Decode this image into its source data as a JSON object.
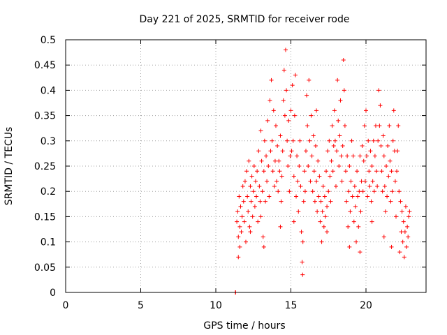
{
  "chart_data": {
    "type": "scatter",
    "title": "Day 221 of 2025, SRMTID for receiver rode",
    "xlabel": "GPS time / hours",
    "ylabel": "SRMTID / TECUs",
    "xlim": [
      0,
      24
    ],
    "ylim": [
      0,
      0.5
    ],
    "xticks": [
      0,
      5,
      10,
      15,
      20
    ],
    "yticks": [
      0,
      0.05,
      0.1,
      0.15,
      0.2,
      0.25,
      0.3,
      0.35,
      0.4,
      0.45,
      0.5
    ],
    "xtick_labels": [
      "0",
      "5",
      "10",
      "15",
      "20"
    ],
    "ytick_labels": [
      "0",
      "0.05",
      "0.1",
      "0.15",
      "0.2",
      "0.25",
      "0.3",
      "0.35",
      "0.4",
      "0.45",
      "0.5"
    ],
    "grid": true,
    "marker": "+",
    "color": "#ff0000",
    "series": [
      {
        "name": "SRMTID",
        "points": [
          [
            11.3,
            0.0
          ],
          [
            11.32,
            0.0
          ],
          [
            11.4,
            0.14
          ],
          [
            11.45,
            0.16
          ],
          [
            11.5,
            0.07
          ],
          [
            11.5,
            0.11
          ],
          [
            11.55,
            0.19
          ],
          [
            11.6,
            0.13
          ],
          [
            11.65,
            0.17
          ],
          [
            11.7,
            0.12
          ],
          [
            11.75,
            0.15
          ],
          [
            11.8,
            0.21
          ],
          [
            11.85,
            0.18
          ],
          [
            11.9,
            0.14
          ],
          [
            11.95,
            0.22
          ],
          [
            12.0,
            0.1
          ],
          [
            12.05,
            0.24
          ],
          [
            12.1,
            0.19
          ],
          [
            12.15,
            0.16
          ],
          [
            12.2,
            0.26
          ],
          [
            12.25,
            0.13
          ],
          [
            12.3,
            0.21
          ],
          [
            12.35,
            0.18
          ],
          [
            12.4,
            0.23
          ],
          [
            12.45,
            0.15
          ],
          [
            12.5,
            0.2
          ],
          [
            12.55,
            0.25
          ],
          [
            12.6,
            0.17
          ],
          [
            12.65,
            0.22
          ],
          [
            12.7,
            0.19
          ],
          [
            12.75,
            0.24
          ],
          [
            12.8,
            0.14
          ],
          [
            12.85,
            0.28
          ],
          [
            12.9,
            0.21
          ],
          [
            12.95,
            0.18
          ],
          [
            13.0,
            0.32
          ],
          [
            13.05,
            0.26
          ],
          [
            13.1,
            0.2
          ],
          [
            13.15,
            0.11
          ],
          [
            13.2,
            0.24
          ],
          [
            13.25,
            0.3
          ],
          [
            13.3,
            0.18
          ],
          [
            13.35,
            0.27
          ],
          [
            13.4,
            0.22
          ],
          [
            13.45,
            0.34
          ],
          [
            13.5,
            0.25
          ],
          [
            13.55,
            0.19
          ],
          [
            13.6,
            0.38
          ],
          [
            13.65,
            0.28
          ],
          [
            13.7,
            0.42
          ],
          [
            13.75,
            0.3
          ],
          [
            13.8,
            0.24
          ],
          [
            13.85,
            0.36
          ],
          [
            13.9,
            0.21
          ],
          [
            13.95,
            0.26
          ],
          [
            14.0,
            0.33
          ],
          [
            14.05,
            0.22
          ],
          [
            14.1,
            0.29
          ],
          [
            14.15,
            0.2
          ],
          [
            14.2,
            0.26
          ],
          [
            14.25,
            0.24
          ],
          [
            14.3,
            0.31
          ],
          [
            14.35,
            0.18
          ],
          [
            14.4,
            0.23
          ],
          [
            14.45,
            0.28
          ],
          [
            14.5,
            0.38
          ],
          [
            14.55,
            0.44
          ],
          [
            14.6,
            0.35
          ],
          [
            14.65,
            0.48
          ],
          [
            14.7,
            0.4
          ],
          [
            14.75,
            0.3
          ],
          [
            14.8,
            0.25
          ],
          [
            14.85,
            0.34
          ],
          [
            14.9,
            0.2
          ],
          [
            14.95,
            0.27
          ],
          [
            15.0,
            0.36
          ],
          [
            15.05,
            0.28
          ],
          [
            15.1,
            0.41
          ],
          [
            15.15,
            0.3
          ],
          [
            15.2,
            0.23
          ],
          [
            15.25,
            0.35
          ],
          [
            15.3,
            0.43
          ],
          [
            15.35,
            0.19
          ],
          [
            15.4,
            0.27
          ],
          [
            15.45,
            0.22
          ],
          [
            15.5,
            0.16
          ],
          [
            15.55,
            0.25
          ],
          [
            15.6,
            0.3
          ],
          [
            15.65,
            0.21
          ],
          [
            15.7,
            0.12
          ],
          [
            15.75,
            0.06
          ],
          [
            15.78,
            0.035
          ],
          [
            15.8,
            0.1
          ],
          [
            15.85,
            0.18
          ],
          [
            15.9,
            0.24
          ],
          [
            15.95,
            0.2
          ],
          [
            16.0,
            0.28
          ],
          [
            16.05,
            0.39
          ],
          [
            16.1,
            0.33
          ],
          [
            16.15,
            0.25
          ],
          [
            16.2,
            0.42
          ],
          [
            16.25,
            0.3
          ],
          [
            16.3,
            0.22
          ],
          [
            16.35,
            0.35
          ],
          [
            16.4,
            0.27
          ],
          [
            16.45,
            0.2
          ],
          [
            16.5,
            0.31
          ],
          [
            16.55,
            0.24
          ],
          [
            16.6,
            0.18
          ],
          [
            16.65,
            0.29
          ],
          [
            16.7,
            0.22
          ],
          [
            16.75,
            0.16
          ],
          [
            16.8,
            0.26
          ],
          [
            16.85,
            0.19
          ],
          [
            16.9,
            0.23
          ],
          [
            16.95,
            0.14
          ],
          [
            17.0,
            0.18
          ],
          [
            17.05,
            0.1
          ],
          [
            17.1,
            0.16
          ],
          [
            17.15,
            0.21
          ],
          [
            17.2,
            0.13
          ],
          [
            17.25,
            0.19
          ],
          [
            17.3,
            0.15
          ],
          [
            17.35,
            0.24
          ],
          [
            17.4,
            0.17
          ],
          [
            17.45,
            0.28
          ],
          [
            17.5,
            0.2
          ],
          [
            17.55,
            0.3
          ],
          [
            17.6,
            0.23
          ],
          [
            17.65,
            0.18
          ],
          [
            17.7,
            0.26
          ],
          [
            17.75,
            0.33
          ],
          [
            17.8,
            0.24
          ],
          [
            17.85,
            0.29
          ],
          [
            17.9,
            0.36
          ],
          [
            17.95,
            0.3
          ],
          [
            18.0,
            0.21
          ],
          [
            18.05,
            0.28
          ],
          [
            18.1,
            0.42
          ],
          [
            18.15,
            0.34
          ],
          [
            18.2,
            0.25
          ],
          [
            18.25,
            0.31
          ],
          [
            18.3,
            0.38
          ],
          [
            18.35,
            0.27
          ],
          [
            18.4,
            0.22
          ],
          [
            18.45,
            0.29
          ],
          [
            18.5,
            0.46
          ],
          [
            18.55,
            0.4
          ],
          [
            18.6,
            0.33
          ],
          [
            18.65,
            0.24
          ],
          [
            18.7,
            0.18
          ],
          [
            18.75,
            0.27
          ],
          [
            18.8,
            0.13
          ],
          [
            18.85,
            0.2
          ],
          [
            18.9,
            0.25
          ],
          [
            18.95,
            0.16
          ],
          [
            19.0,
            0.22
          ],
          [
            19.05,
            0.3
          ],
          [
            19.1,
            0.19
          ],
          [
            19.15,
            0.27
          ],
          [
            19.2,
            0.14
          ],
          [
            19.25,
            0.21
          ],
          [
            19.3,
            0.17
          ],
          [
            19.35,
            0.1
          ],
          [
            19.4,
            0.24
          ],
          [
            19.45,
            0.19
          ],
          [
            19.5,
            0.13
          ],
          [
            19.55,
            0.2
          ],
          [
            19.6,
            0.27
          ],
          [
            19.65,
            0.16
          ],
          [
            19.7,
            0.22
          ],
          [
            19.75,
            0.29
          ],
          [
            19.8,
            0.2
          ],
          [
            19.85,
            0.26
          ],
          [
            19.9,
            0.33
          ],
          [
            19.95,
            0.22
          ],
          [
            20.0,
            0.36
          ],
          [
            20.05,
            0.27
          ],
          [
            20.1,
            0.19
          ],
          [
            20.15,
            0.3
          ],
          [
            20.2,
            0.24
          ],
          [
            20.25,
            0.21
          ],
          [
            20.3,
            0.28
          ],
          [
            20.35,
            0.18
          ],
          [
            20.4,
            0.25
          ],
          [
            20.45,
            0.22
          ],
          [
            20.5,
            0.3
          ],
          [
            20.55,
            0.2
          ],
          [
            20.6,
            0.27
          ],
          [
            20.65,
            0.33
          ],
          [
            20.7,
            0.24
          ],
          [
            20.75,
            0.21
          ],
          [
            20.8,
            0.3
          ],
          [
            20.85,
            0.4
          ],
          [
            20.9,
            0.33
          ],
          [
            20.95,
            0.37
          ],
          [
            21.0,
            0.29
          ],
          [
            21.05,
            0.24
          ],
          [
            21.1,
            0.2
          ],
          [
            21.15,
            0.31
          ],
          [
            21.2,
            0.27
          ],
          [
            21.25,
            0.21
          ],
          [
            21.3,
            0.16
          ],
          [
            21.35,
            0.25
          ],
          [
            21.4,
            0.19
          ],
          [
            21.45,
            0.29
          ],
          [
            21.5,
            0.23
          ],
          [
            21.55,
            0.33
          ],
          [
            21.6,
            0.26
          ],
          [
            21.65,
            0.18
          ],
          [
            21.7,
            0.24
          ],
          [
            21.75,
            0.2
          ],
          [
            21.8,
            0.3
          ],
          [
            21.85,
            0.36
          ],
          [
            21.9,
            0.28
          ],
          [
            21.95,
            0.22
          ],
          [
            22.0,
            0.15
          ],
          [
            22.05,
            0.24
          ],
          [
            22.1,
            0.28
          ],
          [
            22.15,
            0.33
          ],
          [
            22.2,
            0.2
          ],
          [
            22.25,
            0.08
          ],
          [
            22.3,
            0.18
          ],
          [
            22.35,
            0.12
          ],
          [
            22.4,
            0.16
          ],
          [
            22.45,
            0.1
          ],
          [
            22.5,
            0.14
          ],
          [
            22.55,
            0.07
          ],
          [
            22.6,
            0.12
          ],
          [
            22.65,
            0.17
          ],
          [
            22.7,
            0.09
          ],
          [
            22.75,
            0.13
          ],
          [
            22.8,
            0.11
          ],
          [
            22.85,
            0.15
          ],
          [
            11.6,
            0.09
          ],
          [
            12.3,
            0.12
          ],
          [
            13.0,
            0.15
          ],
          [
            13.2,
            0.09
          ],
          [
            14.3,
            0.13
          ],
          [
            15.2,
            0.14
          ],
          [
            16.7,
            0.36
          ],
          [
            17.4,
            0.12
          ],
          [
            18.9,
            0.09
          ],
          [
            19.6,
            0.08
          ],
          [
            20.4,
            0.14
          ],
          [
            21.2,
            0.11
          ],
          [
            21.7,
            0.09
          ],
          [
            22.9,
            0.16
          ]
        ]
      }
    ]
  }
}
